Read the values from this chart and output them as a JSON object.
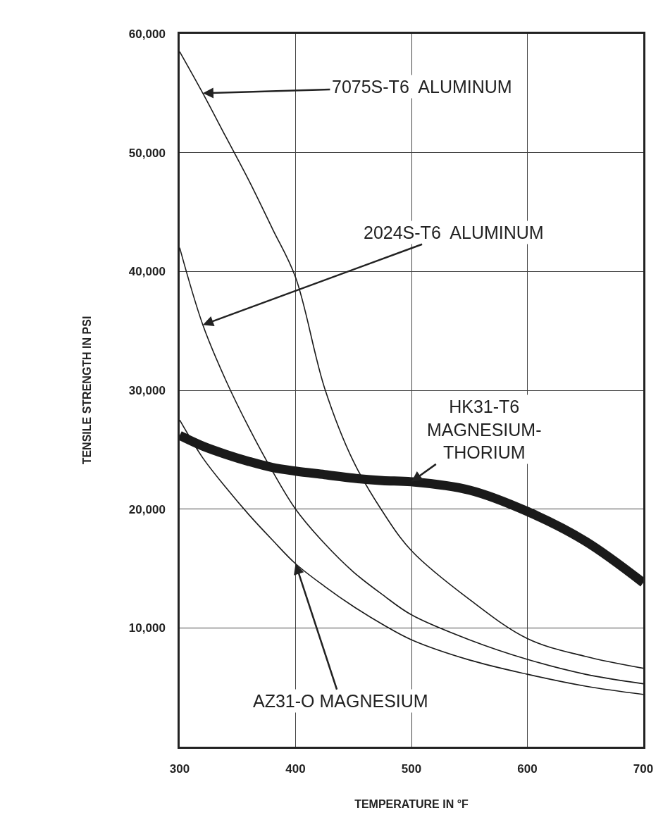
{
  "chart_data": {
    "type": "line",
    "xlabel": "TEMPERATURE IN °F",
    "ylabel": "TENSILE STRENGTH IN PSI",
    "x": [
      300,
      320,
      340,
      360,
      380,
      400,
      425,
      450,
      475,
      500,
      550,
      600,
      650,
      700
    ],
    "series": [
      {
        "color": "#1a1a1a",
        "values": [
          58500,
          55000,
          51300,
          47600,
          43600,
          39500,
          30200,
          24000,
          19800,
          16500,
          12400,
          9100,
          7600,
          6600
        ]
      },
      {
        "color": "#1a1a1a",
        "values": [
          42000,
          35500,
          30800,
          26800,
          23200,
          20000,
          17100,
          14700,
          12800,
          11100,
          9000,
          7350,
          6100,
          5300
        ]
      },
      {
        "color": "#1a1a1a",
        "values": [
          26200,
          25300,
          24600,
          24000,
          23500,
          23200,
          22900,
          22600,
          22400,
          22300,
          21600,
          19800,
          17300,
          13800
        ]
      },
      {
        "color": "#1a1a1a",
        "values": [
          27500,
          24300,
          21800,
          19500,
          17400,
          15400,
          13500,
          11800,
          10300,
          9000,
          7300,
          6100,
          5100,
          4400
        ]
      }
    ],
    "annotations": [
      {
        "text": "7075S-T6  ALUMINUM",
        "x": 320,
        "y": 55000
      },
      {
        "text": "2024S-T6  ALUMINUM",
        "x": 320,
        "y": 35500
      },
      {
        "text": "HK31-T6\nMAGNESIUM-\nTHORIUM",
        "x": 500,
        "y": 22300
      },
      {
        "text": "AZ31-O MAGNESIUM",
        "x": 400,
        "y": 15400
      }
    ],
    "xlim": [
      300,
      700
    ],
    "xticks": [
      300,
      400,
      500,
      600,
      700
    ],
    "ylim": [
      0,
      60000
    ],
    "yticks": [
      {
        "value": 10000,
        "label": "10,000"
      },
      {
        "value": 20000,
        "label": "20,000"
      },
      {
        "value": 30000,
        "label": "30,000"
      },
      {
        "value": 40000,
        "label": "40,000"
      },
      {
        "value": 50000,
        "label": "50,000"
      },
      {
        "value": 60000,
        "label": "60,000"
      }
    ],
    "grid": true,
    "marker": "none",
    "line_style": "solid"
  }
}
